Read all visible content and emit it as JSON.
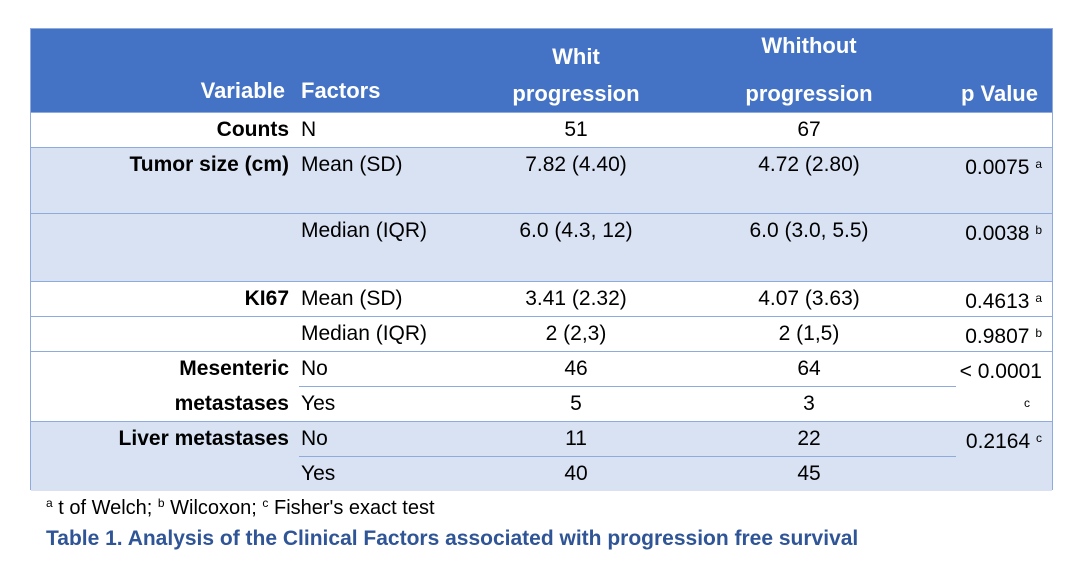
{
  "header": {
    "variable": "Variable",
    "factors": "Factors",
    "with_line1": "Whit",
    "with_line2": "progression",
    "without_line1": "Whithout",
    "without_line2": "progression",
    "p_value": "p Value"
  },
  "rows": [
    {
      "variable": "Counts",
      "factor": "N",
      "with": "51",
      "without": "67",
      "p": "",
      "sup": ""
    },
    {
      "variable": "Tumor  size (cm)",
      "factor": "Mean (SD)",
      "with": "7.82 (4.40)",
      "without": "4.72 (2.80)",
      "p": "0.0075",
      "sup": "a"
    },
    {
      "variable": "",
      "factor": "Median (IQR)",
      "with": "6.0 (4.3, 12)",
      "without": "6.0 (3.0, 5.5)",
      "p": "0.0038",
      "sup": "b"
    },
    {
      "variable": "KI67",
      "factor": "Mean (SD)",
      "with": "3.41 (2.32)",
      "without": "4.07 (3.63)",
      "p": "0.4613",
      "sup": "a"
    },
    {
      "variable": "",
      "factor": "Median (IQR)",
      "with": "2 (2,3)",
      "without": "2 (1,5)",
      "p": "0.9807",
      "sup": "b"
    },
    {
      "variable": "Mesenteric",
      "factor": "No",
      "with": "46",
      "without": "64",
      "p": "< 0.0001",
      "sup": ""
    },
    {
      "variable": "metastases",
      "factor": "Yes",
      "with": "5",
      "without": "3",
      "p": "",
      "sup": "c"
    },
    {
      "variable": "Liver metastases",
      "factor": "No",
      "with": "11",
      "without": "22",
      "p": "0.2164",
      "sup": "c"
    },
    {
      "variable": "",
      "factor": "Yes",
      "with": "40",
      "without": "45",
      "p": "",
      "sup": ""
    }
  ],
  "footnote": {
    "a": "a",
    "a_text": " t of Welch; ",
    "b": "b",
    "b_text": " Wilcoxon; ",
    "c": "c",
    "c_text": " Fisher's exact test"
  },
  "caption": "Table 1. Analysis of the Clinical Factors associated with progression free survival",
  "colors": {
    "header_bg": "#4472c4",
    "band_bg": "#d9e2f3",
    "border": "#8faadc",
    "caption": "#2f5597"
  }
}
